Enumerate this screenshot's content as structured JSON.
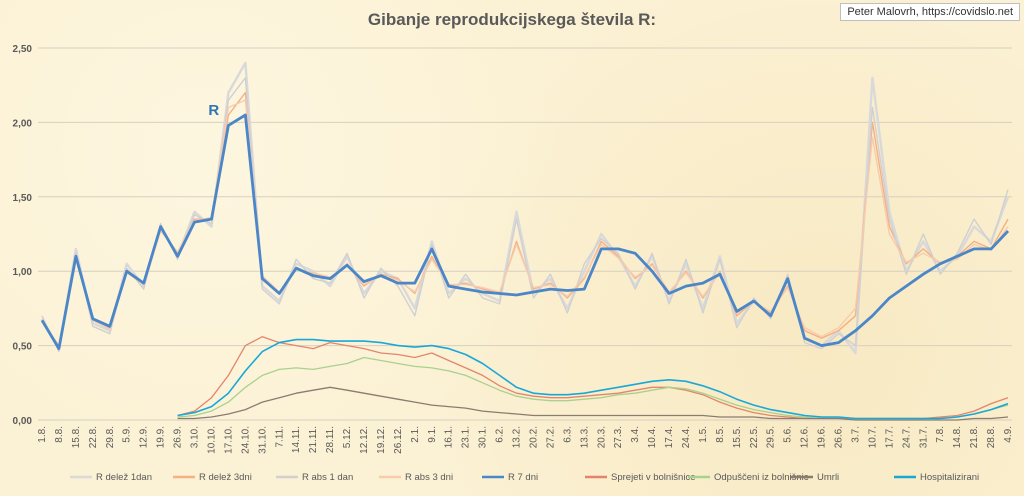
{
  "title": "Gibanje reprodukcijskega števila R:",
  "credit": "Peter Malovrh, https://covidslo.net",
  "r_label": "R",
  "chart_data": {
    "type": "line",
    "title": "Gibanje reprodukcijskega števila R:",
    "xlabel": "",
    "ylabel": "",
    "ylim": [
      0,
      2.5
    ],
    "yticks": [
      "0,00",
      "0,50",
      "1,00",
      "1,50",
      "2,00",
      "2,50"
    ],
    "ytick_values": [
      0,
      0.5,
      1,
      1.5,
      2,
      2.5
    ],
    "grid": true,
    "legend_position": "bottom",
    "x": [
      "1.8.",
      "8.8.",
      "15.8.",
      "22.8.",
      "29.8.",
      "5.9.",
      "12.9.",
      "19.9.",
      "26.9.",
      "3.10.",
      "10.10.",
      "17.10.",
      "24.10.",
      "31.10.",
      "7.11.",
      "14.11.",
      "21.11.",
      "28.11.",
      "5.12.",
      "12.12.",
      "19.12.",
      "26.12.",
      "2.1.",
      "9.1.",
      "16.1.",
      "23.1.",
      "30.1.",
      "6.2.",
      "13.2.",
      "20.2.",
      "27.2.",
      "6.3.",
      "13.3.",
      "20.3.",
      "27.3.",
      "3.4.",
      "10.4.",
      "17.4.",
      "24.4.",
      "1.5.",
      "8.5.",
      "15.5.",
      "22.5.",
      "29.5.",
      "5.6.",
      "12.6.",
      "19.6.",
      "26.6.",
      "3.7.",
      "10.7.",
      "17.7.",
      "24.7.",
      "31.7.",
      "7.8.",
      "14.8.",
      "21.8.",
      "28.8.",
      "4.9."
    ],
    "series": [
      {
        "name": "R delež 1dan",
        "color": "#d9d9d9",
        "width": 2.4,
        "values": [
          0.68,
          0.48,
          1.15,
          0.65,
          0.6,
          1.05,
          0.9,
          1.3,
          1.1,
          1.4,
          1.3,
          2.2,
          2.4,
          0.9,
          0.8,
          1.05,
          1.0,
          0.9,
          1.1,
          0.85,
          1.0,
          0.95,
          0.75,
          1.2,
          0.85,
          0.95,
          0.85,
          0.8,
          1.4,
          0.85,
          0.95,
          0.75,
          1.0,
          1.25,
          1.1,
          0.9,
          1.1,
          0.8,
          1.05,
          0.75,
          1.1,
          0.65,
          0.8,
          0.7,
          0.95,
          0.55,
          0.5,
          0.6,
          0.45,
          2.3,
          1.4,
          1.0,
          1.2,
          1.0,
          1.1,
          1.3,
          1.2,
          1.5
        ]
      },
      {
        "name": "R delež 3dni",
        "color": "#f4b183",
        "width": 1.4,
        "values": [
          0.66,
          0.5,
          1.1,
          0.68,
          0.62,
          1.0,
          0.92,
          1.28,
          1.12,
          1.35,
          1.35,
          2.05,
          2.2,
          0.95,
          0.85,
          1.02,
          0.98,
          0.95,
          1.05,
          0.9,
          0.98,
          0.95,
          0.85,
          1.1,
          0.9,
          0.92,
          0.88,
          0.85,
          1.2,
          0.88,
          0.92,
          0.82,
          0.95,
          1.2,
          1.1,
          0.95,
          1.05,
          0.85,
          1.0,
          0.82,
          1.0,
          0.7,
          0.8,
          0.72,
          0.9,
          0.6,
          0.55,
          0.6,
          0.7,
          2.0,
          1.3,
          1.05,
          1.15,
          1.05,
          1.1,
          1.2,
          1.15,
          1.35
        ]
      },
      {
        "name": "R abs 1 dan",
        "color": "#d0d0d0",
        "width": 1.4,
        "values": [
          0.7,
          0.46,
          1.12,
          0.63,
          0.58,
          1.02,
          0.88,
          1.32,
          1.08,
          1.38,
          1.32,
          2.15,
          2.3,
          0.88,
          0.78,
          1.08,
          0.95,
          0.92,
          1.12,
          0.82,
          1.02,
          0.9,
          0.7,
          1.18,
          0.82,
          0.98,
          0.82,
          0.78,
          1.35,
          0.82,
          0.98,
          0.72,
          1.05,
          1.22,
          1.12,
          0.88,
          1.12,
          0.78,
          1.08,
          0.72,
          1.08,
          0.62,
          0.82,
          0.68,
          0.98,
          0.52,
          0.48,
          0.58,
          0.5,
          2.1,
          1.35,
          0.98,
          1.25,
          0.98,
          1.12,
          1.35,
          1.18,
          1.55
        ]
      },
      {
        "name": "R abs 3 dni",
        "color": "#f8cbad",
        "width": 1.4,
        "values": [
          0.67,
          0.49,
          1.08,
          0.67,
          0.61,
          0.99,
          0.91,
          1.27,
          1.13,
          1.34,
          1.36,
          2.1,
          2.15,
          0.97,
          0.86,
          1.01,
          0.99,
          0.96,
          1.04,
          0.91,
          0.97,
          0.94,
          0.86,
          1.08,
          0.91,
          0.91,
          0.89,
          0.86,
          1.18,
          0.89,
          0.91,
          0.83,
          0.96,
          1.18,
          1.09,
          0.96,
          1.04,
          0.86,
          0.99,
          0.83,
          0.99,
          0.72,
          0.79,
          0.73,
          0.89,
          0.62,
          0.56,
          0.62,
          0.75,
          1.9,
          1.25,
          1.06,
          1.12,
          1.06,
          1.08,
          1.18,
          1.14,
          1.3
        ]
      },
      {
        "name": "R 7 dni",
        "color": "#4a86c8",
        "width": 2.8,
        "values": [
          0.67,
          0.48,
          1.1,
          0.68,
          0.63,
          1.0,
          0.92,
          1.3,
          1.1,
          1.33,
          1.35,
          1.98,
          2.05,
          0.95,
          0.85,
          1.02,
          0.97,
          0.95,
          1.04,
          0.93,
          0.97,
          0.92,
          0.92,
          1.15,
          0.9,
          0.88,
          0.86,
          0.85,
          0.84,
          0.86,
          0.88,
          0.87,
          0.88,
          1.15,
          1.15,
          1.12,
          1.0,
          0.85,
          0.9,
          0.92,
          0.98,
          0.73,
          0.8,
          0.7,
          0.95,
          0.55,
          0.5,
          0.52,
          0.6,
          0.7,
          0.82,
          0.9,
          0.98,
          1.05,
          1.1,
          1.15,
          1.15,
          1.27
        ]
      },
      {
        "name": "Sprejeti v bolnišnice",
        "color": "#e2866a",
        "width": 1.3,
        "values": [
          null,
          null,
          null,
          null,
          null,
          null,
          null,
          null,
          0.03,
          0.06,
          0.15,
          0.3,
          0.5,
          0.56,
          0.52,
          0.5,
          0.48,
          0.52,
          0.5,
          0.48,
          0.45,
          0.44,
          0.42,
          0.45,
          0.4,
          0.35,
          0.3,
          0.23,
          0.18,
          0.16,
          0.15,
          0.15,
          0.16,
          0.17,
          0.18,
          0.2,
          0.22,
          0.22,
          0.2,
          0.17,
          0.12,
          0.08,
          0.05,
          0.03,
          0.02,
          0.01,
          0.01,
          0.01,
          0.01,
          0.01,
          0.01,
          0.01,
          0.01,
          0.02,
          0.03,
          0.06,
          0.11,
          0.15
        ]
      },
      {
        "name": "Odpuščeni iz bolnišnic",
        "color": "#a9d18e",
        "width": 1.3,
        "values": [
          null,
          null,
          null,
          null,
          null,
          null,
          null,
          null,
          0.02,
          0.03,
          0.06,
          0.12,
          0.22,
          0.3,
          0.34,
          0.35,
          0.34,
          0.36,
          0.38,
          0.42,
          0.4,
          0.38,
          0.36,
          0.35,
          0.33,
          0.3,
          0.25,
          0.2,
          0.16,
          0.14,
          0.13,
          0.13,
          0.14,
          0.15,
          0.17,
          0.18,
          0.2,
          0.22,
          0.21,
          0.18,
          0.14,
          0.1,
          0.07,
          0.05,
          0.03,
          0.02,
          0.01,
          0.01,
          0.01,
          0.01,
          0.01,
          0.01,
          0.01,
          0.01,
          0.02,
          0.04,
          0.07,
          0.1
        ]
      },
      {
        "name": "Umrli",
        "color": "#8c7b6f",
        "width": 1.3,
        "values": [
          null,
          null,
          null,
          null,
          null,
          null,
          null,
          null,
          0.01,
          0.01,
          0.02,
          0.04,
          0.07,
          0.12,
          0.15,
          0.18,
          0.2,
          0.22,
          0.2,
          0.18,
          0.16,
          0.14,
          0.12,
          0.1,
          0.09,
          0.08,
          0.06,
          0.05,
          0.04,
          0.03,
          0.03,
          0.03,
          0.03,
          0.03,
          0.03,
          0.03,
          0.03,
          0.03,
          0.03,
          0.03,
          0.02,
          0.02,
          0.02,
          0.01,
          0.01,
          0.01,
          0.01,
          0.01,
          0.0,
          0.0,
          0.0,
          0.0,
          0.0,
          0.0,
          0.0,
          0.01,
          0.01,
          0.02
        ]
      },
      {
        "name": "Hospitalizirani",
        "color": "#17a8d8",
        "width": 1.6,
        "values": [
          null,
          null,
          null,
          null,
          null,
          null,
          null,
          null,
          0.03,
          0.05,
          0.09,
          0.18,
          0.33,
          0.46,
          0.52,
          0.54,
          0.54,
          0.53,
          0.53,
          0.53,
          0.52,
          0.5,
          0.49,
          0.5,
          0.48,
          0.44,
          0.38,
          0.3,
          0.22,
          0.18,
          0.17,
          0.17,
          0.18,
          0.2,
          0.22,
          0.24,
          0.26,
          0.27,
          0.26,
          0.23,
          0.19,
          0.14,
          0.1,
          0.07,
          0.05,
          0.03,
          0.02,
          0.02,
          0.01,
          0.01,
          0.01,
          0.01,
          0.01,
          0.01,
          0.02,
          0.04,
          0.07,
          0.11
        ]
      }
    ]
  }
}
